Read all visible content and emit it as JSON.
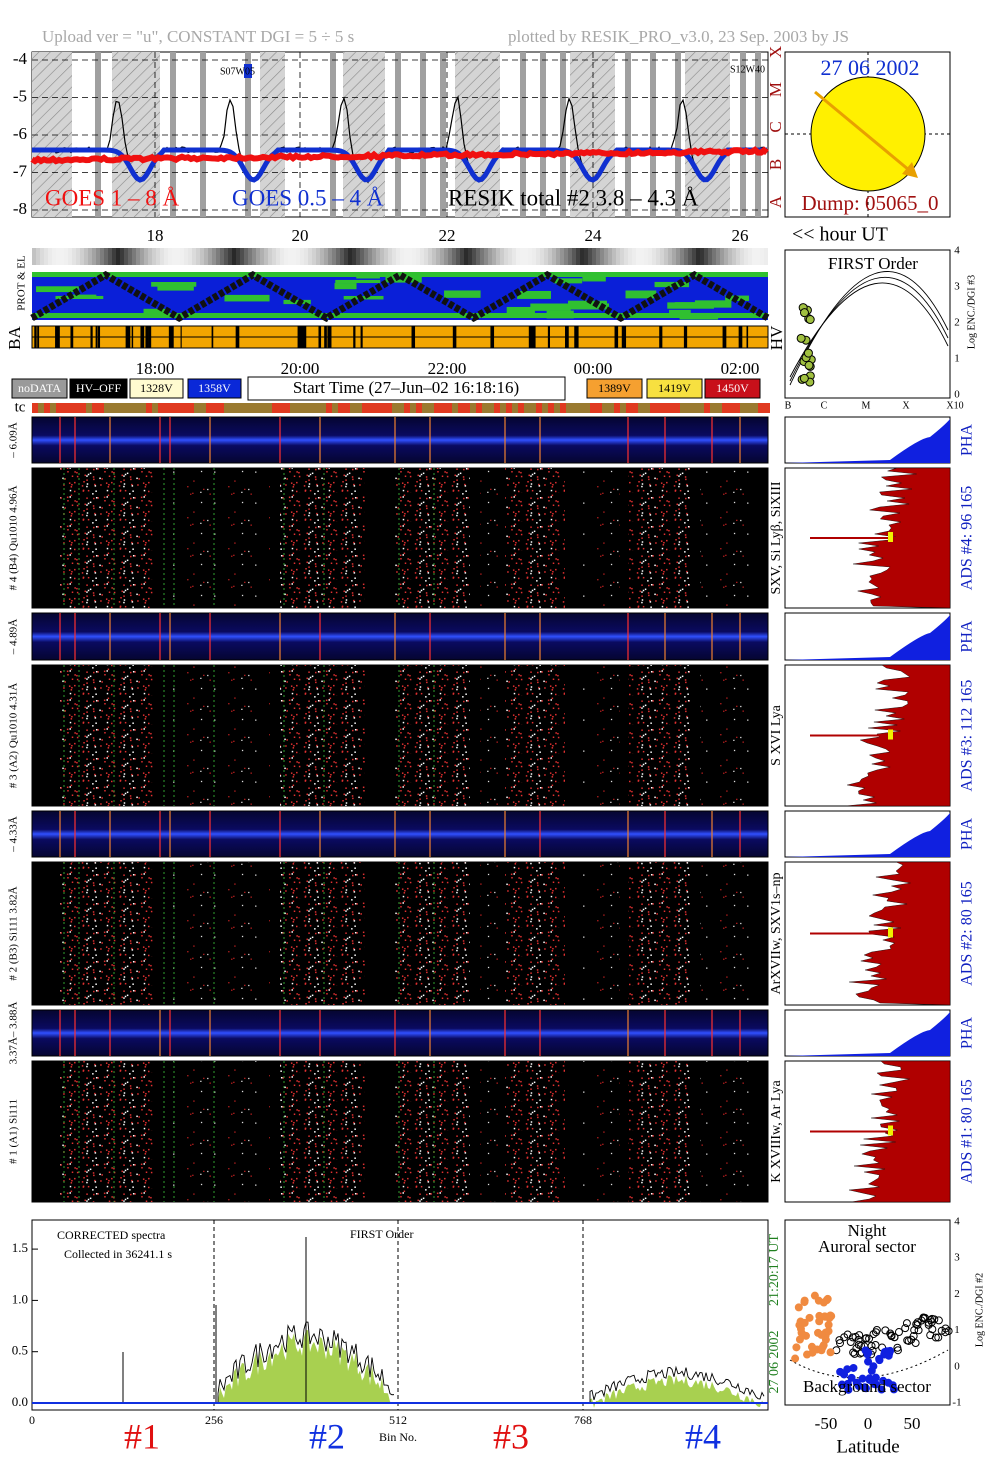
{
  "header": {
    "upload": "Upload ver = \"u\", CONSTANT  DGI =   5 ÷   5 s",
    "plotted": "plotted by RESIK_PRO_v3.0, 23 Sep. 2003 by JS"
  },
  "goes": {
    "yticks": [
      "-4",
      "-5",
      "-6",
      "-7",
      "-8"
    ],
    "classes": [
      "X",
      "M",
      "C",
      "B",
      "A"
    ],
    "legend_long": "GOES 1 – 8 Å",
    "legend_short": "GOES 0.5 – 4 Å",
    "legend_resik": "RESIK total #2  3.8 – 4.3 Å",
    "regions": [
      "S07W05",
      "S12W40"
    ]
  },
  "sun": {
    "date": "27 06 2002",
    "dump": "Dump: 05065_0"
  },
  "hours": {
    "ticks": [
      "18",
      "20",
      "22",
      "24",
      "26"
    ],
    "unit": "<< hour UT"
  },
  "tracks": {
    "prot_el": "PROT & EL",
    "ba": "BA",
    "hv": "HV"
  },
  "times": [
    "18:00",
    "20:00",
    "22:00",
    "00:00",
    "02:00"
  ],
  "legend": [
    {
      "label": "noDATA",
      "color": "#9a9a9a"
    },
    {
      "label": "HV–OFF",
      "color": "#000000"
    },
    {
      "label": "1328V",
      "color": "#fffbd0"
    },
    {
      "label": "1358V",
      "color": "#0a28d8"
    },
    {
      "label": "1389V",
      "color": "#f5a030"
    },
    {
      "label": "1419V",
      "color": "#f7e040"
    },
    {
      "label": "1450V",
      "color": "#c8101a"
    }
  ],
  "start_time": "Start Time (27–Jun–02 16:18:16)",
  "tc": "tc",
  "first_order": {
    "title": "FIRST Order",
    "yticks": [
      "0",
      "1",
      "2",
      "3",
      "4"
    ],
    "ylabel": "Log ENC./DGI #3",
    "xticks": [
      "B",
      "C",
      "M",
      "X",
      "X10"
    ]
  },
  "channels": [
    {
      "pha_label": "– 6.09Å",
      "main_label": "# 4 (B4) Qu1010 4.96Å",
      "pha": "PHA",
      "ads": "ADS #4:   96 165",
      "lines": "SXV, Si Lyβ, SiXIII"
    },
    {
      "pha_label": "– 4.89Å",
      "main_label": "# 3 (A2) Qu1010  4.31Å",
      "pha": "PHA",
      "ads": "ADS #3:   112 165",
      "lines": "S XVI Lya"
    },
    {
      "pha_label": "– 4.33Å",
      "main_label": "# 2 (B3) Si111  3.82Å",
      "pha": "PHA",
      "ads": "ADS #2:   80 165",
      "lines": "ArXVIIw, SXV1s–np"
    },
    {
      "pha_label": "3.37Å– 3.88Å",
      "main_label": "# 1 (A1) Si111",
      "pha": "PHA",
      "ads": "ADS #1:   80 165",
      "lines": "K XVIIIw, Ar Lya"
    }
  ],
  "spectrum": {
    "yticks": [
      "0.0",
      "0.5",
      "1.0",
      "1.5"
    ],
    "xticks": [
      "0",
      "256",
      "512",
      "768"
    ],
    "title": "CORRECTED spectra",
    "collected": "Collected in 36241.1 s",
    "order": "FIRST Order",
    "xlabel": "Bin No.",
    "channels": [
      "#1",
      "#2",
      "#3",
      "#4"
    ],
    "time": "21:20:17 UT",
    "date": "27 06 2002"
  },
  "latitude": {
    "night": "Night",
    "auroral": "Auroral sector",
    "background": "Background sector",
    "xticks": [
      "-50",
      "0",
      "50"
    ],
    "xlabel": "Latitude",
    "yticks": [
      "-1",
      "0",
      "1",
      "2",
      "3",
      "4"
    ],
    "ylabel": "Log ENC./DGI #2"
  }
}
